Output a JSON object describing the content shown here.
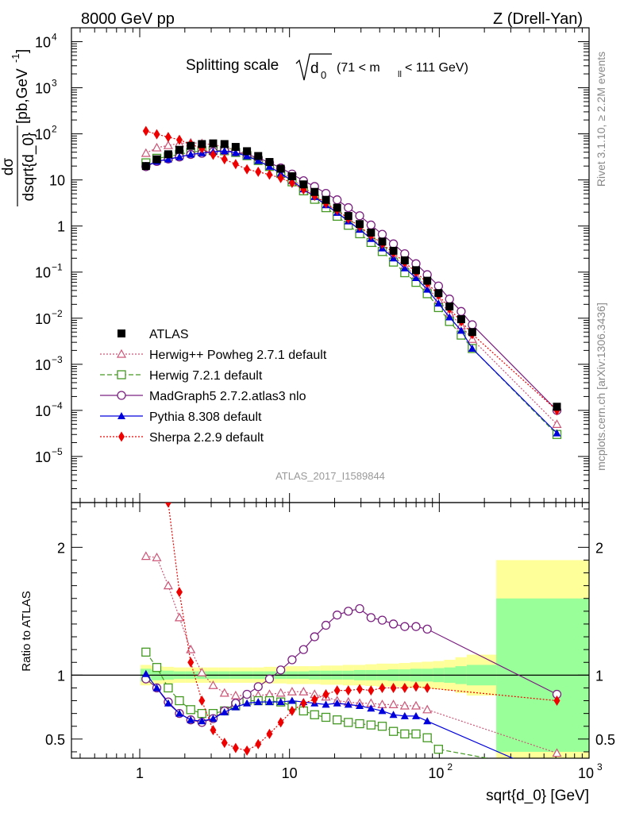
{
  "chart_data": {
    "type": "line",
    "header_left": "8000 GeV pp",
    "header_right": "Z (Drell-Yan)",
    "title": "Splitting scale",
    "title_sqrt": "d",
    "title_sqrt_sub": "0",
    "title_cut": "(71 < m",
    "title_cut_sub": "ll",
    "title_cut_end": " < 111 GeV)",
    "ylabel_top_d": "dσ",
    "ylabel_top_denom": "dsqrt{d_0}",
    "ylabel_top_unit": "[pb,GeV",
    "ylabel_top_unit_sup": "-1",
    "ylabel_top_unit_end": "]",
    "ylabel_bottom": "Ratio to ATLAS",
    "xlabel": "sqrt{d_0} [GeV]",
    "analysis_label": "ATLAS_2017_I1589844",
    "side_label_1": "Rivet 3.1.10, ≥ 2.2M events",
    "side_label_2": "mcplots.cern.ch [arXiv:1306.3436]",
    "x_scale": "log",
    "xlim": [
      0.35,
      1000
    ],
    "top_y_scale": "log",
    "top_ylim": [
      1e-06,
      20000.0
    ],
    "ratio_ylim": [
      0.35,
      2.35
    ],
    "x_ticks": [
      {
        "value": 1,
        "label": "1"
      },
      {
        "value": 10,
        "label": "10"
      },
      {
        "value": 100,
        "label": "10",
        "sup": "2"
      },
      {
        "value": 1000,
        "label": "10",
        "sup": "3"
      }
    ],
    "top_y_ticks": [
      {
        "value": 10000,
        "label": "10",
        "sup": "4"
      },
      {
        "value": 1000,
        "label": "10",
        "sup": "3"
      },
      {
        "value": 100,
        "label": "10",
        "sup": "2"
      },
      {
        "value": 10,
        "label": "10",
        "sup": ""
      },
      {
        "value": 1,
        "label": "1",
        "sup": ""
      },
      {
        "value": 0.1,
        "label": "10",
        "sup": "−1"
      },
      {
        "value": 0.01,
        "label": "10",
        "sup": "−2"
      },
      {
        "value": 0.001,
        "label": "10",
        "sup": "−3"
      },
      {
        "value": 0.0001,
        "label": "10",
        "sup": "−4"
      },
      {
        "value": 1e-05,
        "label": "10",
        "sup": "−5"
      }
    ],
    "ratio_y_ticks": [
      {
        "value": 0.5,
        "label": "0.5"
      },
      {
        "value": 1,
        "label": "1"
      },
      {
        "value": 2,
        "label": "2"
      }
    ],
    "legend_position": "lower-left",
    "x": [
      1.1,
      1.3,
      1.55,
      1.84,
      2.19,
      2.6,
      3.09,
      3.68,
      4.37,
      5.2,
      6.18,
      7.35,
      8.74,
      10.4,
      12.4,
      14.7,
      17.5,
      20.8,
      24.7,
      29.4,
      35.0,
      41.6,
      49.4,
      58.8,
      69.9,
      83.1,
      98.8,
      117,
      140,
      166,
      610
    ],
    "atlas": [
      20,
      28,
      36,
      45,
      55,
      60,
      62,
      60,
      52,
      42,
      33,
      24.5,
      17.5,
      12,
      8,
      5.5,
      3.7,
      2.5,
      1.65,
      1.1,
      0.72,
      0.46,
      0.29,
      0.18,
      0.11,
      0.065,
      0.035,
      0.018,
      0.0095,
      0.005,
      0.00012
    ],
    "atlas_band_inner": [
      0.05,
      0.04,
      0.035,
      0.03,
      0.03,
      0.03,
      0.03,
      0.03,
      0.03,
      0.03,
      0.03,
      0.03,
      0.03,
      0.03,
      0.03,
      0.035,
      0.035,
      0.035,
      0.035,
      0.04,
      0.04,
      0.04,
      0.045,
      0.045,
      0.05,
      0.05,
      0.055,
      0.06,
      0.07,
      0.08,
      0.6
    ],
    "atlas_band_outer": [
      0.08,
      0.07,
      0.065,
      0.06,
      0.06,
      0.06,
      0.06,
      0.06,
      0.06,
      0.06,
      0.06,
      0.065,
      0.065,
      0.07,
      0.07,
      0.07,
      0.075,
      0.075,
      0.08,
      0.08,
      0.085,
      0.09,
      0.09,
      0.095,
      0.1,
      0.105,
      0.11,
      0.12,
      0.14,
      0.16,
      0.9
    ],
    "series": [
      {
        "name": "ATLAS",
        "color": "#000000",
        "marker": "square-filled",
        "line": "none",
        "ratio": []
      },
      {
        "name": "Herwig++ Powheg 2.7.1 default",
        "color": "#cc5577",
        "marker": "triangle-open",
        "line": "dotted",
        "ratio": [
          1.93,
          1.92,
          1.7,
          1.45,
          1.2,
          1.02,
          0.92,
          0.86,
          0.84,
          0.84,
          0.84,
          0.85,
          0.86,
          0.87,
          0.87,
          0.85,
          0.83,
          0.8,
          0.79,
          0.78,
          0.78,
          0.77,
          0.77,
          0.76,
          0.76,
          0.73,
          null,
          null,
          null,
          null,
          0.39
        ]
      },
      {
        "name": "Herwig 7.2.1 default",
        "color": "#449922",
        "marker": "square-open",
        "line": "dashed",
        "ratio": [
          1.18,
          1.06,
          0.9,
          0.8,
          0.73,
          0.7,
          0.7,
          0.72,
          0.76,
          0.8,
          0.8,
          0.8,
          0.79,
          0.76,
          0.72,
          0.69,
          0.67,
          0.65,
          0.63,
          0.62,
          0.61,
          0.6,
          0.56,
          0.54,
          0.54,
          0.51,
          0.42,
          null,
          null,
          null,
          0.25
        ]
      },
      {
        "name": "MadGraph5 2.7.2.atlas3 nlo",
        "color": "#7a2080",
        "marker": "circle-open",
        "line": "solid",
        "ratio": [
          0.97,
          0.9,
          0.79,
          0.7,
          0.65,
          0.63,
          0.66,
          0.72,
          0.78,
          0.85,
          0.91,
          0.97,
          1.04,
          1.12,
          1.2,
          1.3,
          1.39,
          1.47,
          1.5,
          1.52,
          1.45,
          1.43,
          1.4,
          1.38,
          1.38,
          1.36,
          null,
          null,
          null,
          null,
          0.85
        ]
      },
      {
        "name": "Pythia 8.308 default",
        "color": "#0000dd",
        "marker": "triangle-filled",
        "line": "solid",
        "ratio": [
          1.01,
          0.9,
          0.78,
          0.7,
          0.65,
          0.64,
          0.66,
          0.71,
          0.75,
          0.78,
          0.79,
          0.79,
          0.79,
          0.8,
          0.79,
          0.78,
          0.77,
          0.78,
          0.77,
          0.76,
          0.74,
          0.72,
          0.69,
          0.68,
          0.68,
          0.64,
          null,
          null,
          null,
          null,
          0.2
        ]
      },
      {
        "name": "Sherpa 2.2.9 default",
        "color": "#ee0000",
        "marker": "diamond-filled",
        "line": "dotted",
        "ratio": [
          null,
          null,
          2.35,
          1.65,
          1.1,
          0.8,
          0.57,
          0.47,
          0.43,
          0.41,
          0.46,
          0.54,
          0.63,
          0.72,
          0.78,
          0.81,
          0.85,
          0.88,
          0.88,
          0.89,
          0.88,
          0.9,
          0.9,
          0.9,
          0.91,
          0.9,
          null,
          null,
          null,
          null,
          0.8
        ]
      }
    ],
    "top_series": [
      {
        "name": "Herwig++ Powheg 2.7.1 default",
        "values": [
          38,
          50,
          56,
          62,
          64,
          62,
          58,
          52,
          44,
          36,
          28,
          21,
          15,
          10.5,
          7,
          4.7,
          3.1,
          2.0,
          1.3,
          0.85,
          0.56,
          0.35,
          0.22,
          0.135,
          0.083,
          0.047,
          0.025,
          0.013,
          0.0069,
          0.0035,
          5e-05
        ]
      },
      {
        "name": "Herwig 7.2.1 default",
        "values": [
          23.5,
          29.5,
          32,
          36,
          40,
          42,
          43.4,
          43,
          39.5,
          33.6,
          26.4,
          19.6,
          13.8,
          9.1,
          5.8,
          3.8,
          2.5,
          1.63,
          1.04,
          0.68,
          0.44,
          0.28,
          0.165,
          0.097,
          0.06,
          0.034,
          0.017,
          0.0085,
          0.0043,
          0.0022,
          3e-05
        ]
      },
      {
        "name": "MadGraph5 2.7.2.atlas3 nlo",
        "values": [
          19.4,
          25.2,
          28.4,
          31.5,
          35.7,
          37.8,
          40.9,
          43.2,
          40.6,
          35.7,
          30,
          23.8,
          18.2,
          13.4,
          9.6,
          7.2,
          5.1,
          3.7,
          2.5,
          1.67,
          1.05,
          0.66,
          0.41,
          0.25,
          0.152,
          0.088,
          0.05,
          0.026,
          0.014,
          0.0072,
          0.0001
        ]
      },
      {
        "name": "Pythia 8.308 default",
        "values": [
          20.2,
          25.2,
          28,
          31.5,
          35.7,
          38.4,
          40.9,
          42.6,
          39,
          32.8,
          26.1,
          19.4,
          13.8,
          9.6,
          6.3,
          4.3,
          2.85,
          1.95,
          1.27,
          0.84,
          0.53,
          0.33,
          0.2,
          0.122,
          0.075,
          0.042,
          0.021,
          0.0105,
          0.0054,
          0.0022,
          3.2e-05
        ]
      },
      {
        "name": "Sherpa 2.2.9 default",
        "values": [
          115,
          98,
          85,
          74,
          60,
          48,
          35,
          28,
          22,
          17,
          15,
          13,
          11,
          8.6,
          6.2,
          4.5,
          3.1,
          2.2,
          1.45,
          0.98,
          0.63,
          0.41,
          0.26,
          0.162,
          0.1,
          0.058,
          0.032,
          0.016,
          0.0085,
          0.0045,
          0.0001
        ]
      }
    ]
  }
}
